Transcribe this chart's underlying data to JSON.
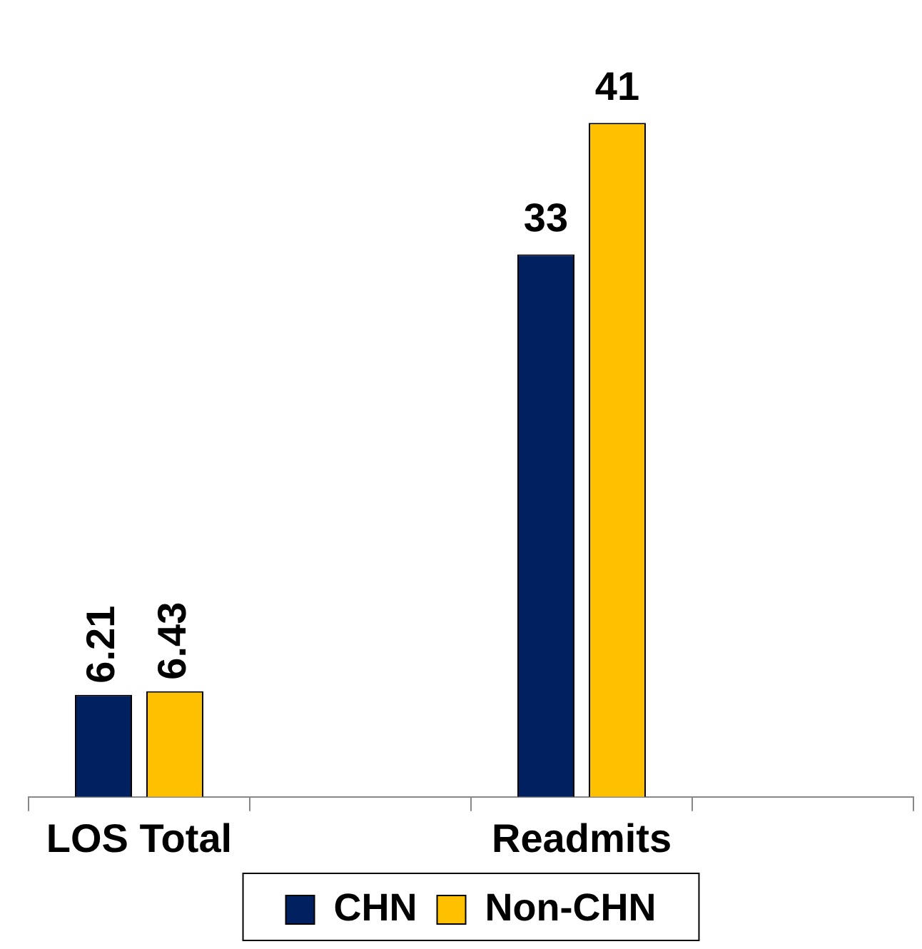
{
  "chart_data": {
    "type": "bar",
    "categories": [
      "LOS Total",
      null,
      "Readmits",
      null
    ],
    "series": [
      {
        "name": "CHN",
        "color": "#002060",
        "values": [
          6.21,
          null,
          33,
          null
        ]
      },
      {
        "name": "Non-CHN",
        "color": "#ffc000",
        "values": [
          6.43,
          null,
          41,
          null
        ]
      }
    ],
    "data_labels": true,
    "legend": "bottom",
    "grid": false
  }
}
